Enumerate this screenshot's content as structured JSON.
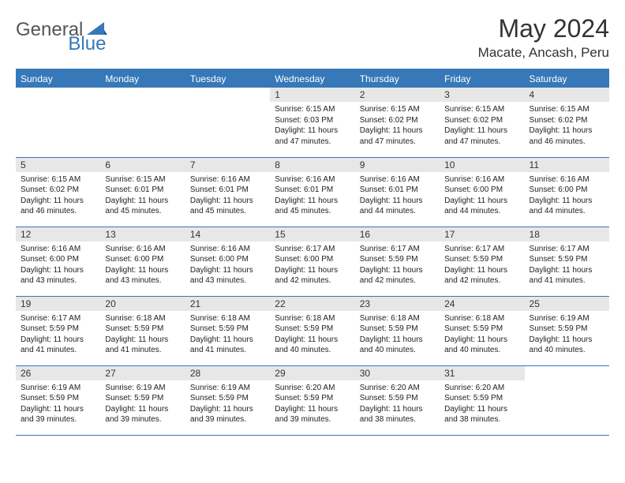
{
  "brand": {
    "part1": "General",
    "part2": "Blue"
  },
  "title": "May 2024",
  "location": "Macate, Ancash, Peru",
  "colors": {
    "accent": "#3678b8",
    "header_gray": "#e7e7e7",
    "text": "#333333",
    "background": "#ffffff"
  },
  "weekdays": [
    "Sunday",
    "Monday",
    "Tuesday",
    "Wednesday",
    "Thursday",
    "Friday",
    "Saturday"
  ],
  "weeks": [
    [
      {
        "empty": true
      },
      {
        "empty": true
      },
      {
        "empty": true
      },
      {
        "n": "1",
        "sunrise": "6:15 AM",
        "sunset": "6:03 PM",
        "daylight": "11 hours and 47 minutes."
      },
      {
        "n": "2",
        "sunrise": "6:15 AM",
        "sunset": "6:02 PM",
        "daylight": "11 hours and 47 minutes."
      },
      {
        "n": "3",
        "sunrise": "6:15 AM",
        "sunset": "6:02 PM",
        "daylight": "11 hours and 47 minutes."
      },
      {
        "n": "4",
        "sunrise": "6:15 AM",
        "sunset": "6:02 PM",
        "daylight": "11 hours and 46 minutes."
      }
    ],
    [
      {
        "n": "5",
        "sunrise": "6:15 AM",
        "sunset": "6:02 PM",
        "daylight": "11 hours and 46 minutes."
      },
      {
        "n": "6",
        "sunrise": "6:15 AM",
        "sunset": "6:01 PM",
        "daylight": "11 hours and 45 minutes."
      },
      {
        "n": "7",
        "sunrise": "6:16 AM",
        "sunset": "6:01 PM",
        "daylight": "11 hours and 45 minutes."
      },
      {
        "n": "8",
        "sunrise": "6:16 AM",
        "sunset": "6:01 PM",
        "daylight": "11 hours and 45 minutes."
      },
      {
        "n": "9",
        "sunrise": "6:16 AM",
        "sunset": "6:01 PM",
        "daylight": "11 hours and 44 minutes."
      },
      {
        "n": "10",
        "sunrise": "6:16 AM",
        "sunset": "6:00 PM",
        "daylight": "11 hours and 44 minutes."
      },
      {
        "n": "11",
        "sunrise": "6:16 AM",
        "sunset": "6:00 PM",
        "daylight": "11 hours and 44 minutes."
      }
    ],
    [
      {
        "n": "12",
        "sunrise": "6:16 AM",
        "sunset": "6:00 PM",
        "daylight": "11 hours and 43 minutes."
      },
      {
        "n": "13",
        "sunrise": "6:16 AM",
        "sunset": "6:00 PM",
        "daylight": "11 hours and 43 minutes."
      },
      {
        "n": "14",
        "sunrise": "6:16 AM",
        "sunset": "6:00 PM",
        "daylight": "11 hours and 43 minutes."
      },
      {
        "n": "15",
        "sunrise": "6:17 AM",
        "sunset": "6:00 PM",
        "daylight": "11 hours and 42 minutes."
      },
      {
        "n": "16",
        "sunrise": "6:17 AM",
        "sunset": "5:59 PM",
        "daylight": "11 hours and 42 minutes."
      },
      {
        "n": "17",
        "sunrise": "6:17 AM",
        "sunset": "5:59 PM",
        "daylight": "11 hours and 42 minutes."
      },
      {
        "n": "18",
        "sunrise": "6:17 AM",
        "sunset": "5:59 PM",
        "daylight": "11 hours and 41 minutes."
      }
    ],
    [
      {
        "n": "19",
        "sunrise": "6:17 AM",
        "sunset": "5:59 PM",
        "daylight": "11 hours and 41 minutes."
      },
      {
        "n": "20",
        "sunrise": "6:18 AM",
        "sunset": "5:59 PM",
        "daylight": "11 hours and 41 minutes."
      },
      {
        "n": "21",
        "sunrise": "6:18 AM",
        "sunset": "5:59 PM",
        "daylight": "11 hours and 41 minutes."
      },
      {
        "n": "22",
        "sunrise": "6:18 AM",
        "sunset": "5:59 PM",
        "daylight": "11 hours and 40 minutes."
      },
      {
        "n": "23",
        "sunrise": "6:18 AM",
        "sunset": "5:59 PM",
        "daylight": "11 hours and 40 minutes."
      },
      {
        "n": "24",
        "sunrise": "6:18 AM",
        "sunset": "5:59 PM",
        "daylight": "11 hours and 40 minutes."
      },
      {
        "n": "25",
        "sunrise": "6:19 AM",
        "sunset": "5:59 PM",
        "daylight": "11 hours and 40 minutes."
      }
    ],
    [
      {
        "n": "26",
        "sunrise": "6:19 AM",
        "sunset": "5:59 PM",
        "daylight": "11 hours and 39 minutes."
      },
      {
        "n": "27",
        "sunrise": "6:19 AM",
        "sunset": "5:59 PM",
        "daylight": "11 hours and 39 minutes."
      },
      {
        "n": "28",
        "sunrise": "6:19 AM",
        "sunset": "5:59 PM",
        "daylight": "11 hours and 39 minutes."
      },
      {
        "n": "29",
        "sunrise": "6:20 AM",
        "sunset": "5:59 PM",
        "daylight": "11 hours and 39 minutes."
      },
      {
        "n": "30",
        "sunrise": "6:20 AM",
        "sunset": "5:59 PM",
        "daylight": "11 hours and 38 minutes."
      },
      {
        "n": "31",
        "sunrise": "6:20 AM",
        "sunset": "5:59 PM",
        "daylight": "11 hours and 38 minutes."
      },
      {
        "empty": true
      }
    ]
  ]
}
